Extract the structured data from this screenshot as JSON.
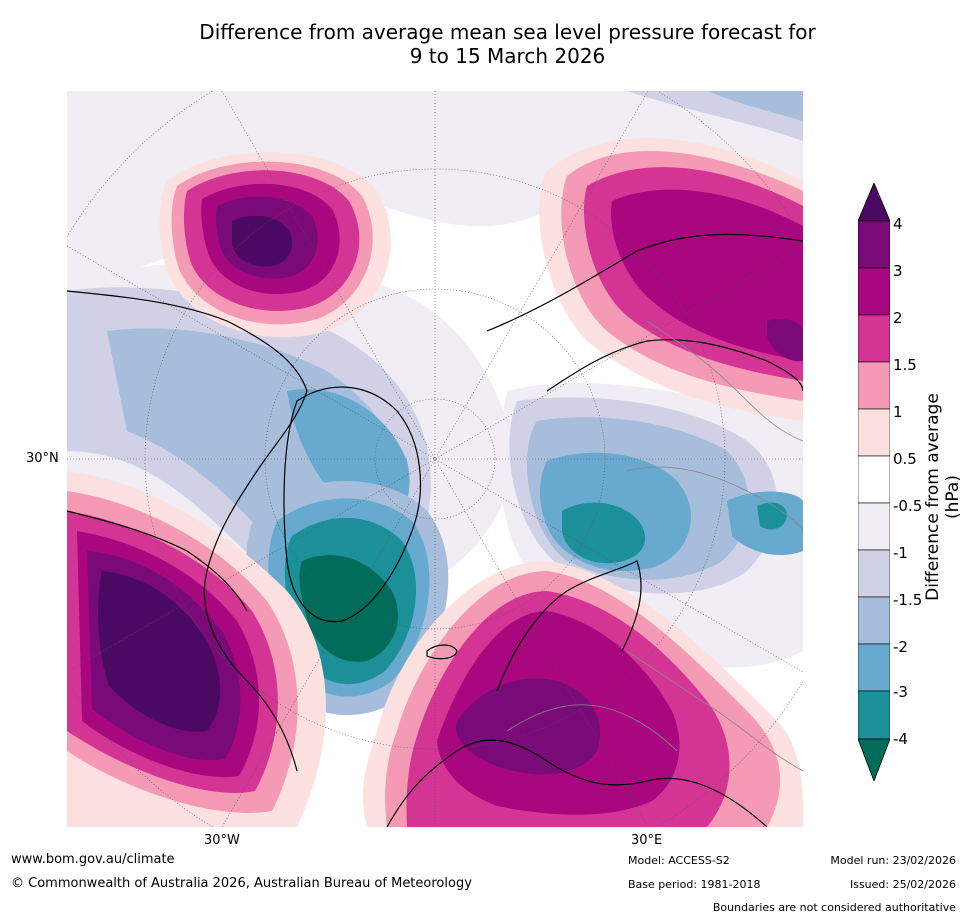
{
  "title": {
    "line1": "Difference from average mean sea level pressure forecast for",
    "line2": "9 to 15 March 2026"
  },
  "map": {
    "projection": "north-polar-stereographic",
    "lat_labels": [
      "30°N"
    ],
    "lon_labels": [
      "30°W",
      "30°E"
    ]
  },
  "colorbar": {
    "title": "Difference from average (hPa)",
    "ticks": [
      "4",
      "3",
      "2",
      "1.5",
      "1",
      "0.5",
      "-0.5",
      "-1",
      "-1.5",
      "-2",
      "-3",
      "-4"
    ],
    "colors": {
      "gt4": "#4a0a63",
      "c3to4": "#7a0a78",
      "c2to3": "#a8077f",
      "c1_5to2": "#d43595",
      "c1to1_5": "#f59ab4",
      "c0_5to1": "#fde1e0",
      "neutral": "#ffffff",
      "m1tom0_5": "#f1edf4",
      "m1_5tom1": "#d0d1e6",
      "m2tom1_5": "#a6bddb",
      "m3tom2": "#67a9cf",
      "m4tom3": "#1c9099",
      "lt_m4": "#016c59"
    }
  },
  "footer": {
    "website": "www.bom.gov.au/climate",
    "copyright": "© Commonwealth of Australia 2026, Australian Bureau of Meteorology",
    "model": "Model: ACCESS-S2",
    "base_period": "Base period: 1981-2018",
    "model_run": "Model run: 23/02/2026",
    "issued": "Issued: 25/02/2026",
    "disclaimer": "Boundaries are not considered authoritative"
  }
}
